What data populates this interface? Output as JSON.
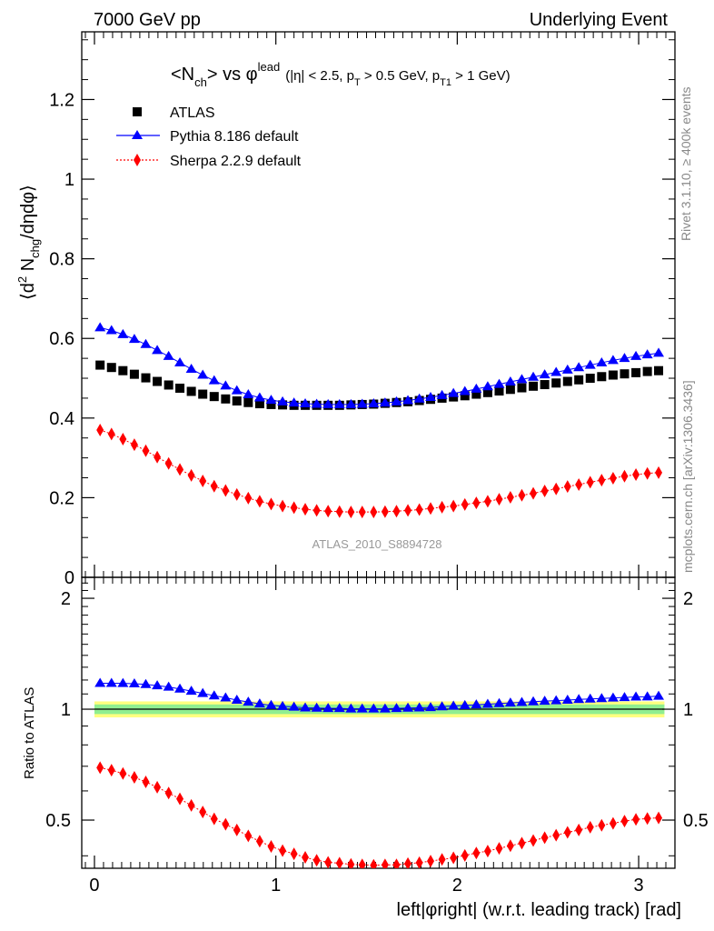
{
  "header": {
    "left": "7000 GeV pp",
    "right": "Underlying Event"
  },
  "side_labels": {
    "rivet": "Rivet 3.1.10, ≥ 400k events",
    "mcplots": "mcplots.cern.ch [arXiv:1306.3436]"
  },
  "title": {
    "main_prefix": "<N",
    "main_sub": "ch",
    "main_mid": "> vs φ",
    "main_sup": "lead",
    "cuts_1": "(|η| < 2.5, p",
    "cuts_sub1": "T",
    "cuts_2": " > 0.5 GeV, p",
    "cuts_sub2": "T1",
    "cuts_3": " > 1 GeV)"
  },
  "axis_labels": {
    "y_main": "⟨d² N_chg/dηdφ⟩",
    "y_ratio": "Ratio to ATLAS",
    "x": "left|φright| (w.r.t. leading track) [rad]"
  },
  "analysis_id": "ATLAS_2010_S8894728",
  "legend": [
    {
      "name": "ATLAS",
      "color": "#000000",
      "marker": "square"
    },
    {
      "name": "Pythia 8.186 default",
      "color": "#0000ff",
      "marker": "triangle"
    },
    {
      "name": "Sherpa 2.2.9 default",
      "color": "#ff0000",
      "marker": "diamond"
    }
  ],
  "chart_data": [
    {
      "type": "scatter",
      "panel": "main",
      "title": "<Nch> vs phi_lead (|eta| < 2.5, pT > 0.5 GeV, pT1 > 1 GeV)",
      "xlabel": "left|phiright| (w.r.t. leading track) [rad]",
      "ylabel": "<d2 Nchg/deta dphi>",
      "xlim": [
        -0.07,
        3.2
      ],
      "ylim": [
        0,
        1.37
      ],
      "xticks": [
        0,
        1,
        2,
        3
      ],
      "yticks": [
        0,
        0.2,
        0.4,
        0.6,
        0.8,
        1,
        1.2
      ],
      "ytick_labels": [
        "0",
        "0.2",
        "0.4",
        "0.6",
        "0.8",
        "1",
        "1.2"
      ],
      "x": [
        0.031,
        0.094,
        0.157,
        0.22,
        0.283,
        0.346,
        0.409,
        0.471,
        0.534,
        0.597,
        0.66,
        0.723,
        0.785,
        0.848,
        0.911,
        0.974,
        1.037,
        1.1,
        1.162,
        1.225,
        1.288,
        1.351,
        1.414,
        1.476,
        1.539,
        1.602,
        1.665,
        1.728,
        1.791,
        1.853,
        1.916,
        1.979,
        2.042,
        2.105,
        2.168,
        2.231,
        2.293,
        2.356,
        2.419,
        2.482,
        2.545,
        2.608,
        2.67,
        2.733,
        2.796,
        2.859,
        2.922,
        2.985,
        3.048,
        3.11
      ],
      "series": [
        {
          "name": "ATLAS",
          "values": [
            0.533,
            0.527,
            0.519,
            0.51,
            0.501,
            0.492,
            0.483,
            0.475,
            0.467,
            0.46,
            0.454,
            0.448,
            0.443,
            0.439,
            0.436,
            0.434,
            0.433,
            0.432,
            0.432,
            0.432,
            0.432,
            0.432,
            0.433,
            0.434,
            0.435,
            0.437,
            0.439,
            0.441,
            0.444,
            0.447,
            0.45,
            0.453,
            0.456,
            0.46,
            0.464,
            0.468,
            0.472,
            0.476,
            0.48,
            0.484,
            0.488,
            0.492,
            0.496,
            0.5,
            0.504,
            0.508,
            0.511,
            0.514,
            0.517,
            0.519
          ]
        },
        {
          "name": "Pythia 8.186 default",
          "values": [
            0.627,
            0.62,
            0.61,
            0.598,
            0.585,
            0.57,
            0.555,
            0.539,
            0.523,
            0.508,
            0.494,
            0.481,
            0.469,
            0.459,
            0.451,
            0.445,
            0.441,
            0.438,
            0.436,
            0.435,
            0.434,
            0.434,
            0.434,
            0.435,
            0.436,
            0.438,
            0.441,
            0.444,
            0.448,
            0.452,
            0.457,
            0.462,
            0.467,
            0.473,
            0.479,
            0.485,
            0.491,
            0.497,
            0.503,
            0.509,
            0.515,
            0.521,
            0.527,
            0.533,
            0.539,
            0.545,
            0.55,
            0.555,
            0.559,
            0.563
          ]
        },
        {
          "name": "Sherpa 2.2.9 default",
          "values": [
            0.37,
            0.36,
            0.347,
            0.333,
            0.318,
            0.302,
            0.286,
            0.271,
            0.256,
            0.242,
            0.229,
            0.218,
            0.208,
            0.199,
            0.191,
            0.184,
            0.179,
            0.175,
            0.171,
            0.168,
            0.166,
            0.165,
            0.164,
            0.164,
            0.164,
            0.165,
            0.166,
            0.168,
            0.17,
            0.173,
            0.176,
            0.179,
            0.183,
            0.187,
            0.191,
            0.196,
            0.201,
            0.206,
            0.211,
            0.217,
            0.222,
            0.228,
            0.233,
            0.239,
            0.244,
            0.249,
            0.254,
            0.258,
            0.261,
            0.263
          ]
        }
      ]
    },
    {
      "type": "scatter",
      "panel": "ratio",
      "ylabel": "Ratio to ATLAS",
      "xlabel": "left|phiright| (w.r.t. leading track) [rad]",
      "xlim": [
        -0.07,
        3.2
      ],
      "ylim": [
        0.37,
        2.28
      ],
      "xticks": [
        0,
        1,
        2,
        3
      ],
      "yticks": [
        0.5,
        1,
        2
      ],
      "ytick_labels": [
        "0.5",
        "1",
        "2"
      ],
      "band": {
        "inner": [
          0.97,
          1.03
        ],
        "outer": [
          0.95,
          1.05
        ]
      },
      "series": [
        {
          "name": "Pythia 8.186 default",
          "values": [
            1.176,
            1.176,
            1.175,
            1.173,
            1.168,
            1.159,
            1.149,
            1.135,
            1.12,
            1.104,
            1.088,
            1.074,
            1.059,
            1.046,
            1.034,
            1.025,
            1.018,
            1.014,
            1.009,
            1.007,
            1.005,
            1.005,
            1.002,
            1.002,
            1.002,
            1.002,
            1.005,
            1.007,
            1.009,
            1.011,
            1.016,
            1.02,
            1.024,
            1.028,
            1.032,
            1.036,
            1.04,
            1.044,
            1.048,
            1.052,
            1.055,
            1.059,
            1.063,
            1.066,
            1.069,
            1.073,
            1.076,
            1.08,
            1.081,
            1.085
          ]
        },
        {
          "name": "Sherpa 2.2.9 default",
          "values": [
            0.694,
            0.683,
            0.669,
            0.653,
            0.635,
            0.614,
            0.592,
            0.571,
            0.548,
            0.526,
            0.504,
            0.487,
            0.47,
            0.453,
            0.438,
            0.424,
            0.413,
            0.405,
            0.396,
            0.389,
            0.384,
            0.382,
            0.379,
            0.378,
            0.377,
            0.378,
            0.378,
            0.381,
            0.383,
            0.387,
            0.391,
            0.395,
            0.401,
            0.407,
            0.412,
            0.419,
            0.426,
            0.433,
            0.44,
            0.448,
            0.455,
            0.463,
            0.47,
            0.478,
            0.484,
            0.49,
            0.497,
            0.502,
            0.505,
            0.507
          ]
        }
      ]
    }
  ]
}
